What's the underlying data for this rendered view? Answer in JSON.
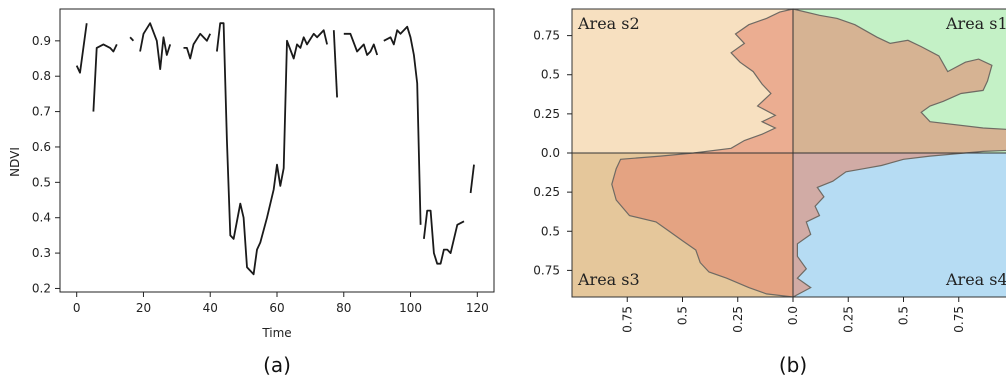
{
  "chart_data": [
    {
      "type": "line",
      "panel_label": "(a)",
      "xlabel": "Time",
      "ylabel": "NDVI",
      "xlim": [
        -5,
        125
      ],
      "ylim": [
        0.19,
        0.99
      ],
      "x_ticks": [
        "0",
        "20",
        "40",
        "60",
        "80",
        "100",
        "120"
      ],
      "y_ticks": [
        "0.2",
        "0.3",
        "0.4",
        "0.5",
        "0.6",
        "0.7",
        "0.8",
        "0.9"
      ],
      "grid": false,
      "segments": [
        [
          [
            0,
            0.83
          ],
          [
            1,
            0.81
          ],
          [
            3,
            0.95
          ]
        ],
        [
          [
            5,
            0.7
          ],
          [
            6,
            0.88
          ],
          [
            8,
            0.89
          ],
          [
            10,
            0.88
          ],
          [
            11,
            0.87
          ],
          [
            12,
            0.89
          ]
        ],
        [
          [
            16,
            0.91
          ],
          [
            17,
            0.9
          ]
        ],
        [
          [
            19,
            0.87
          ],
          [
            20,
            0.92
          ],
          [
            22,
            0.95
          ],
          [
            24,
            0.9
          ],
          [
            25,
            0.82
          ],
          [
            26,
            0.91
          ],
          [
            27,
            0.86
          ],
          [
            28,
            0.89
          ]
        ],
        [
          [
            32,
            0.88
          ],
          [
            33,
            0.88
          ],
          [
            34,
            0.85
          ],
          [
            35,
            0.89
          ],
          [
            37,
            0.92
          ],
          [
            39,
            0.9
          ],
          [
            40,
            0.92
          ]
        ],
        [
          [
            42,
            0.87
          ],
          [
            43,
            0.95
          ],
          [
            44,
            0.95
          ],
          [
            45,
            0.62
          ],
          [
            46,
            0.35
          ],
          [
            47,
            0.34
          ],
          [
            49,
            0.44
          ],
          [
            50,
            0.4
          ],
          [
            51,
            0.26
          ],
          [
            53,
            0.24
          ],
          [
            54,
            0.31
          ],
          [
            55,
            0.33
          ],
          [
            57,
            0.4
          ],
          [
            59,
            0.48
          ],
          [
            60,
            0.55
          ],
          [
            61,
            0.49
          ],
          [
            62,
            0.54
          ],
          [
            63,
            0.9
          ],
          [
            65,
            0.85
          ],
          [
            66,
            0.89
          ],
          [
            67,
            0.88
          ],
          [
            68,
            0.91
          ],
          [
            69,
            0.89
          ],
          [
            71,
            0.92
          ],
          [
            72,
            0.91
          ],
          [
            74,
            0.93
          ],
          [
            75,
            0.89
          ]
        ],
        [
          [
            77,
            0.93
          ],
          [
            78,
            0.74
          ]
        ],
        [
          [
            80,
            0.92
          ],
          [
            82,
            0.92
          ],
          [
            84,
            0.87
          ],
          [
            86,
            0.89
          ],
          [
            87,
            0.86
          ],
          [
            88,
            0.87
          ],
          [
            89,
            0.89
          ],
          [
            90,
            0.86
          ]
        ],
        [
          [
            92,
            0.9
          ],
          [
            94,
            0.91
          ],
          [
            95,
            0.89
          ],
          [
            96,
            0.93
          ],
          [
            97,
            0.92
          ],
          [
            99,
            0.94
          ],
          [
            100,
            0.91
          ],
          [
            101,
            0.86
          ],
          [
            102,
            0.78
          ],
          [
            103,
            0.38
          ]
        ],
        [
          [
            104,
            0.34
          ],
          [
            105,
            0.42
          ],
          [
            106,
            0.42
          ],
          [
            107,
            0.3
          ],
          [
            108,
            0.27
          ],
          [
            109,
            0.27
          ],
          [
            110,
            0.31
          ],
          [
            111,
            0.31
          ],
          [
            112,
            0.3
          ],
          [
            114,
            0.38
          ],
          [
            116,
            0.39
          ]
        ],
        [
          [
            118,
            0.47
          ],
          [
            119,
            0.55
          ]
        ]
      ]
    },
    {
      "type": "area",
      "panel_label": "(b)",
      "xlim": [
        -1,
        1
      ],
      "ylim": [
        -0.92,
        0.92
      ],
      "x_ticks": [
        "0.75",
        "0.5",
        "0.25",
        "0.0",
        "0.25",
        "0.5",
        "0.75"
      ],
      "y_ticks": [
        "0.75",
        "0.5",
        "0.25",
        "0.0",
        "0.25",
        "0.5",
        "0.75"
      ],
      "quadrant_labels": [
        "Area s1",
        "Area s2",
        "Area s3",
        "Area s4"
      ],
      "quadrant_colors": {
        "s1": "#c4f1c6",
        "s2": "#f7e0c0",
        "s3": "#e5c79b",
        "s4": "#b6dcf3"
      },
      "polygon_color": "#e28a72",
      "polygon": [
        [
          0,
          0.92
        ],
        [
          0.12,
          0.88
        ],
        [
          0.2,
          0.86
        ],
        [
          0.28,
          0.82
        ],
        [
          0.38,
          0.74
        ],
        [
          0.44,
          0.7
        ],
        [
          0.52,
          0.72
        ],
        [
          0.58,
          0.68
        ],
        [
          0.66,
          0.62
        ],
        [
          0.7,
          0.52
        ],
        [
          0.78,
          0.58
        ],
        [
          0.84,
          0.6
        ],
        [
          0.9,
          0.56
        ],
        [
          0.88,
          0.46
        ],
        [
          0.86,
          0.4
        ],
        [
          0.76,
          0.38
        ],
        [
          0.68,
          0.33
        ],
        [
          0.62,
          0.3
        ],
        [
          0.58,
          0.26
        ],
        [
          0.62,
          0.2
        ],
        [
          0.86,
          0.16
        ],
        [
          0.98,
          0.15
        ],
        [
          1.02,
          0.08
        ],
        [
          1.02,
          0.02
        ],
        [
          0.86,
          0.01
        ],
        [
          0.62,
          -0.02
        ],
        [
          0.5,
          -0.04
        ],
        [
          0.4,
          -0.08
        ],
        [
          0.32,
          -0.1
        ],
        [
          0.24,
          -0.12
        ],
        [
          0.18,
          -0.18
        ],
        [
          0.11,
          -0.22
        ],
        [
          0.14,
          -0.28
        ],
        [
          0.1,
          -0.34
        ],
        [
          0.12,
          -0.4
        ],
        [
          0.06,
          -0.44
        ],
        [
          0.08,
          -0.52
        ],
        [
          0.02,
          -0.58
        ],
        [
          0.02,
          -0.66
        ],
        [
          0.06,
          -0.74
        ],
        [
          0.02,
          -0.8
        ],
        [
          0.08,
          -0.86
        ],
        [
          0,
          -0.92
        ],
        [
          -0.12,
          -0.9
        ],
        [
          -0.2,
          -0.86
        ],
        [
          -0.3,
          -0.8
        ],
        [
          -0.38,
          -0.76
        ],
        [
          -0.42,
          -0.7
        ],
        [
          -0.44,
          -0.62
        ],
        [
          -0.5,
          -0.56
        ],
        [
          -0.56,
          -0.5
        ],
        [
          -0.62,
          -0.44
        ],
        [
          -0.74,
          -0.4
        ],
        [
          -0.8,
          -0.3
        ],
        [
          -0.82,
          -0.2
        ],
        [
          -0.8,
          -0.1
        ],
        [
          -0.78,
          -0.04
        ],
        [
          -0.6,
          -0.02
        ],
        [
          -0.45,
          0
        ],
        [
          -0.28,
          0.03
        ],
        [
          -0.22,
          0.08
        ],
        [
          -0.14,
          0.12
        ],
        [
          -0.08,
          0.16
        ],
        [
          -0.14,
          0.2
        ],
        [
          -0.08,
          0.24
        ],
        [
          -0.16,
          0.3
        ],
        [
          -0.1,
          0.38
        ],
        [
          -0.14,
          0.44
        ],
        [
          -0.18,
          0.52
        ],
        [
          -0.24,
          0.58
        ],
        [
          -0.28,
          0.64
        ],
        [
          -0.22,
          0.7
        ],
        [
          -0.26,
          0.76
        ],
        [
          -0.2,
          0.82
        ],
        [
          -0.12,
          0.86
        ],
        [
          -0.06,
          0.9
        ]
      ]
    }
  ]
}
